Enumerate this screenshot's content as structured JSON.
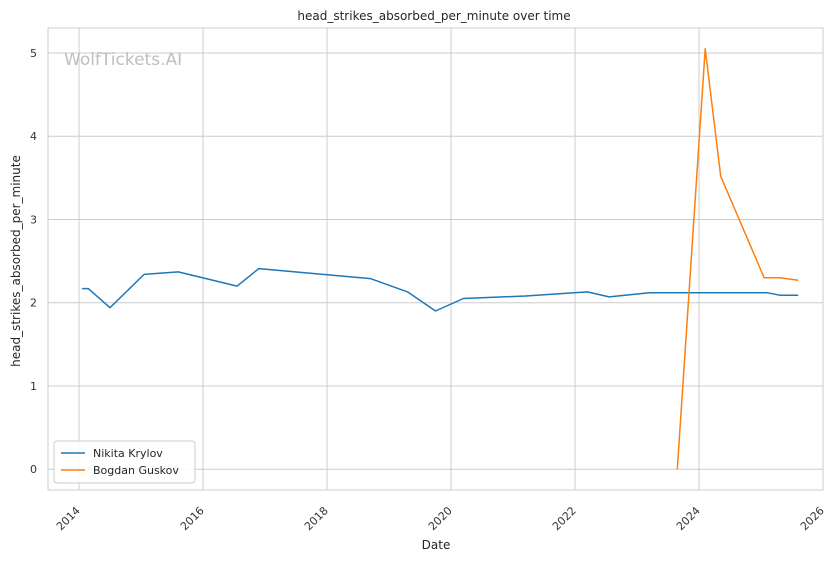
{
  "chart_data": {
    "type": "line",
    "title": "head_strikes_absorbed_per_minute over time",
    "xlabel": "Date",
    "ylabel": "head_strikes_absorbed_per_minute",
    "watermark": "WolfTickets.AI",
    "x_ticks": [
      "2014",
      "2016",
      "2018",
      "2020",
      "2022",
      "2024",
      "2026"
    ],
    "y_ticks": [
      "0",
      "1",
      "2",
      "3",
      "4",
      "5"
    ],
    "xlim": [
      2013.5,
      2026.0
    ],
    "ylim": [
      -0.25,
      5.3
    ],
    "grid": true,
    "legend_position": "lower-left",
    "series": [
      {
        "name": "Nikita Krylov",
        "color": "#1f77b4",
        "points": [
          [
            2014.05,
            2.17
          ],
          [
            2014.15,
            2.17
          ],
          [
            2014.5,
            1.94
          ],
          [
            2015.05,
            2.34
          ],
          [
            2015.6,
            2.37
          ],
          [
            2016.55,
            2.2
          ],
          [
            2016.9,
            2.41
          ],
          [
            2018.7,
            2.29
          ],
          [
            2019.3,
            2.13
          ],
          [
            2019.75,
            1.9
          ],
          [
            2020.2,
            2.05
          ],
          [
            2021.2,
            2.08
          ],
          [
            2022.2,
            2.13
          ],
          [
            2022.55,
            2.07
          ],
          [
            2023.2,
            2.12
          ],
          [
            2025.1,
            2.12
          ],
          [
            2025.3,
            2.09
          ],
          [
            2025.6,
            2.09
          ]
        ]
      },
      {
        "name": "Bogdan Guskov",
        "color": "#ff7f0e",
        "points": [
          [
            2023.65,
            0.0
          ],
          [
            2024.1,
            5.05
          ],
          [
            2024.35,
            3.52
          ],
          [
            2025.05,
            2.3
          ],
          [
            2025.3,
            2.3
          ],
          [
            2025.6,
            2.27
          ]
        ]
      }
    ]
  }
}
